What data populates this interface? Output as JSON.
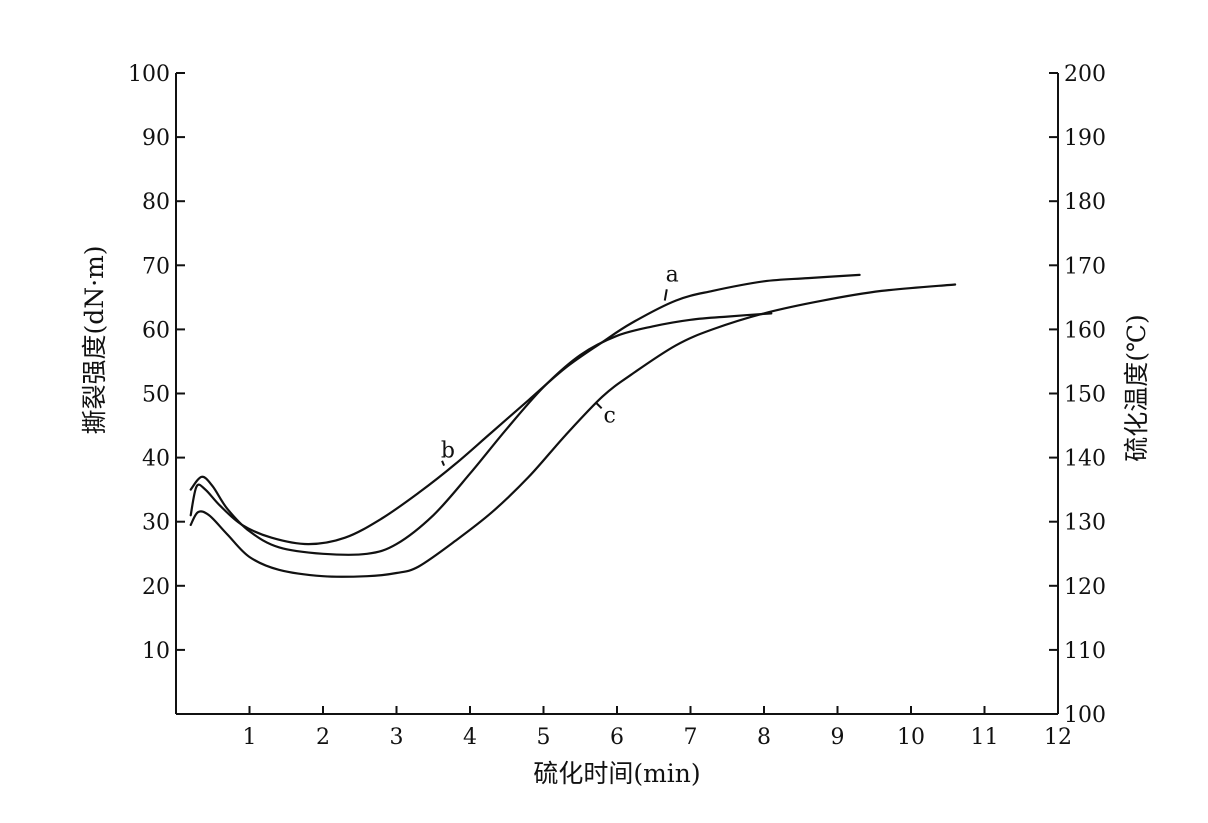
{
  "chart_data": {
    "type": "line",
    "title": "",
    "xlabel": "硫化时间(min)",
    "ylabel_left": "撕裂强度(dN·m)",
    "ylabel_right": "硫化温度(℃)",
    "xlim": [
      0,
      12
    ],
    "ylim_left": [
      0,
      100
    ],
    "ylim_right": [
      100,
      200
    ],
    "x_ticks": [
      "1",
      "2",
      "3",
      "4",
      "5",
      "6",
      "7",
      "8",
      "9",
      "10",
      "11",
      "12"
    ],
    "y_left_ticks": [
      "10",
      "20",
      "30",
      "40",
      "50",
      "60",
      "70",
      "80",
      "90",
      "100"
    ],
    "y_right_ticks": [
      "100",
      "110",
      "120",
      "130",
      "140",
      "150",
      "160",
      "170",
      "180",
      "190",
      "200"
    ],
    "grid": false,
    "legend": "none",
    "series": [
      {
        "name": "a",
        "x": [
          0.2,
          0.28,
          0.4,
          0.6,
          0.9,
          1.3,
          1.8,
          2.3,
          2.8,
          3.3,
          3.8,
          4.3,
          4.8,
          5.3,
          5.8,
          6.2,
          6.8,
          7.3,
          8.0,
          8.6,
          9.3
        ],
        "y": [
          31,
          35.5,
          35,
          32.5,
          29.5,
          27.5,
          26.5,
          27.5,
          30.5,
          34.5,
          39,
          44,
          49,
          54,
          58,
          61,
          64.5,
          66,
          67.5,
          68,
          68.5
        ]
      },
      {
        "name": "b",
        "x": [
          0.2,
          0.35,
          0.5,
          0.7,
          1.0,
          1.4,
          2.0,
          2.6,
          3.0,
          3.5,
          4.0,
          4.5,
          5.0,
          5.5,
          6.0,
          6.5,
          7.0,
          7.5,
          8.1
        ],
        "y": [
          35,
          37,
          35.5,
          32,
          28.5,
          26,
          25,
          25,
          26.5,
          31,
          37.5,
          44.5,
          51,
          56,
          59,
          60.5,
          61.5,
          62,
          62.5
        ]
      },
      {
        "name": "c",
        "x": [
          0.2,
          0.3,
          0.45,
          0.7,
          1.0,
          1.4,
          2.0,
          2.6,
          3.0,
          3.3,
          3.8,
          4.3,
          4.8,
          5.3,
          5.8,
          6.2,
          6.8,
          7.3,
          8.0,
          8.8,
          9.6,
          10.6
        ],
        "y": [
          29.5,
          31.5,
          31,
          28,
          24.5,
          22.5,
          21.5,
          21.5,
          22,
          23,
          27,
          31.5,
          37,
          43.5,
          49.5,
          53,
          57.5,
          60,
          62.5,
          64.5,
          66,
          67
        ]
      }
    ],
    "curve_labels": [
      {
        "text": "a",
        "x": 6.75,
        "y": 67.5
      },
      {
        "text": "b",
        "x": 3.7,
        "y": 40
      },
      {
        "text": "c",
        "x": 5.9,
        "y": 45.5
      }
    ]
  }
}
